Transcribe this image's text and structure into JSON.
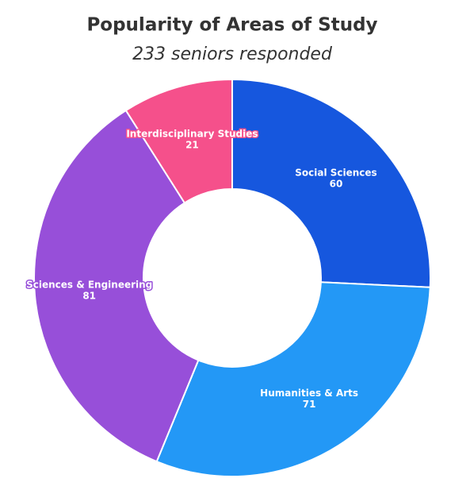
{
  "chart_data": {
    "type": "donut",
    "title": "Popularity of Areas of Study",
    "subtitle": "233 seniors responded",
    "categories": [
      "Social Sciences",
      "Humanities & Arts",
      "Sciences & Engineering",
      "Interdisciplinary Studies"
    ],
    "values": [
      60,
      71,
      81,
      21
    ],
    "colors": [
      "#1657de",
      "#2398f6",
      "#974fd9",
      "#f5508b"
    ]
  }
}
